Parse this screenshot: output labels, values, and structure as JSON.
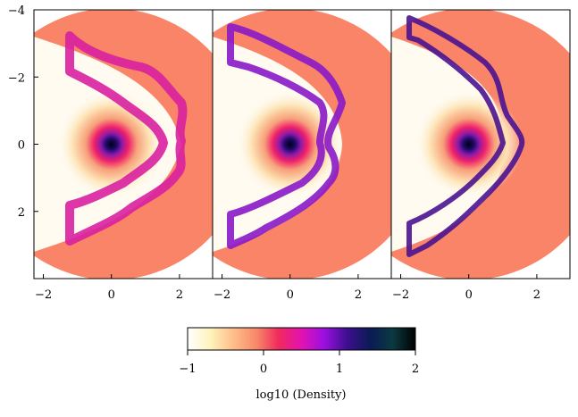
{
  "chart_data": {
    "type": "heatmap",
    "panels": [
      {
        "name": "",
        "x_ticks": [
          "−2",
          "0",
          "2"
        ]
      },
      {
        "name": "",
        "x_ticks": [
          "−2",
          "0",
          "2"
        ]
      },
      {
        "name": "",
        "x_ticks": [
          "−2",
          "0",
          "2"
        ]
      }
    ],
    "x_tick_values": [
      -2,
      0,
      2
    ],
    "y_ticks": [
      "−4",
      "−2",
      "0",
      "2"
    ],
    "y_tick_values": [
      -4,
      -2,
      0,
      2
    ],
    "xlim": [
      -2.25,
      3.0
    ],
    "ylim": [
      -4.0,
      4.0
    ],
    "colorbar": {
      "label": "log10 (Density)",
      "ticks": [
        "−1",
        "0",
        "1",
        "2"
      ],
      "tick_values": [
        -1,
        0,
        1,
        2
      ],
      "range": [
        -1,
        2
      ],
      "colors": [
        "#ffffff",
        "#fff3bd",
        "#fdbf8a",
        "#f78a6a",
        "#f02a5c",
        "#e212b2",
        "#9a10e0",
        "#3d0f8e",
        "#0b1a55",
        "#0b3a40",
        "#000000"
      ]
    },
    "background_density_color": "#f98467",
    "cavity_color": "#fffbf0",
    "core_color": "#000010"
  }
}
